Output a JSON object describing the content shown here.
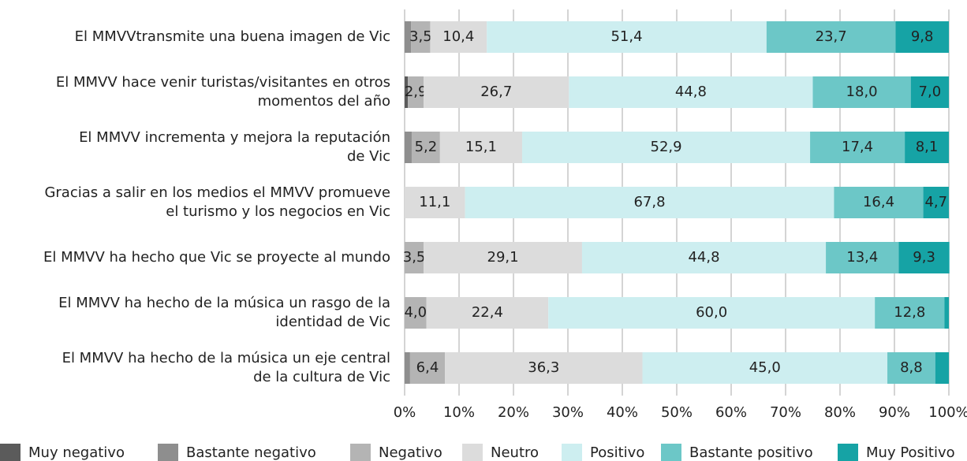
{
  "chart_data": {
    "type": "stacked-barh",
    "categories": [
      [
        "El MMVVtransmite una buena imagen de Vic"
      ],
      [
        "El MMVV hace venir turistas/visitantes en otros",
        "momentos del año"
      ],
      [
        "El MMVV incrementa y mejora la reputación",
        "de Vic"
      ],
      [
        "Gracias a salir en los medios el MMVV promueve",
        "el turismo y los negocios en Vic"
      ],
      [
        "El MMVV ha hecho que Vic se proyecte al mundo"
      ],
      [
        "El MMVV ha hecho de la música un rasgo de la",
        "identidad de Vic"
      ],
      [
        "El MMVV ha hecho de la música un eje central",
        "de la cultura de Vic"
      ]
    ],
    "series": [
      {
        "name": "Muy negativo",
        "color": "#5b5b5b",
        "values": [
          null,
          0.6,
          null,
          null,
          null,
          null,
          null
        ],
        "value_labels": [
          null,
          null,
          null,
          null,
          null,
          null,
          null
        ]
      },
      {
        "name": "Bastante negativo",
        "color": "#8e8e8e",
        "values": [
          1.2,
          null,
          1.3,
          null,
          null,
          null,
          1.0
        ],
        "value_labels": [
          null,
          null,
          null,
          null,
          null,
          null,
          null
        ]
      },
      {
        "name": "Negativo",
        "color": "#b4b4b4",
        "values": [
          3.5,
          2.9,
          5.2,
          null,
          3.5,
          4.0,
          6.4
        ],
        "value_labels": [
          "3,5",
          "2,9",
          "5,2",
          null,
          "3,5",
          "4,0",
          "6,4"
        ]
      },
      {
        "name": "Neutro",
        "color": "#dcdcdc",
        "values": [
          10.4,
          26.7,
          15.1,
          11.1,
          29.1,
          22.4,
          36.3
        ],
        "value_labels": [
          "10,4",
          "26,7",
          "15,1",
          "11,1",
          "29,1",
          "22,4",
          "36,3"
        ]
      },
      {
        "name": "Positivo",
        "color": "#cdeef0",
        "values": [
          51.4,
          44.8,
          52.9,
          67.8,
          44.8,
          60.0,
          45.0
        ],
        "value_labels": [
          "51,4",
          "44,8",
          "52,9",
          "67,8",
          "44,8",
          "60,0",
          "45,0"
        ]
      },
      {
        "name": "Bastante positivo",
        "color": "#6cc7c7",
        "values": [
          23.7,
          18.0,
          17.4,
          16.4,
          13.4,
          12.8,
          8.8
        ],
        "value_labels": [
          "23,7",
          "18,0",
          "17,4",
          "16,4",
          "13,4",
          "12,8",
          "8,8"
        ]
      },
      {
        "name": "Muy Positivo",
        "color": "#16a3a5",
        "values": [
          9.8,
          7.0,
          8.1,
          4.7,
          9.3,
          0.8,
          2.5
        ],
        "value_labels": [
          "9,8",
          "7,0",
          "8,1",
          "4,7",
          "9,3",
          null,
          null
        ]
      }
    ],
    "xlim": [
      0,
      100
    ],
    "xticks": [
      {
        "value": 0,
        "label": "0%"
      },
      {
        "value": 10,
        "label": "10%"
      },
      {
        "value": 20,
        "label": "20%"
      },
      {
        "value": 30,
        "label": "30%"
      },
      {
        "value": 40,
        "label": "40%"
      },
      {
        "value": 50,
        "label": "50%"
      },
      {
        "value": 60,
        "label": "60%"
      },
      {
        "value": 70,
        "label": "70%"
      },
      {
        "value": 80,
        "label": "80%"
      },
      {
        "value": 90,
        "label": "90%"
      },
      {
        "value": 100,
        "label": "100%"
      }
    ],
    "grid": true,
    "legend": "bottom"
  }
}
